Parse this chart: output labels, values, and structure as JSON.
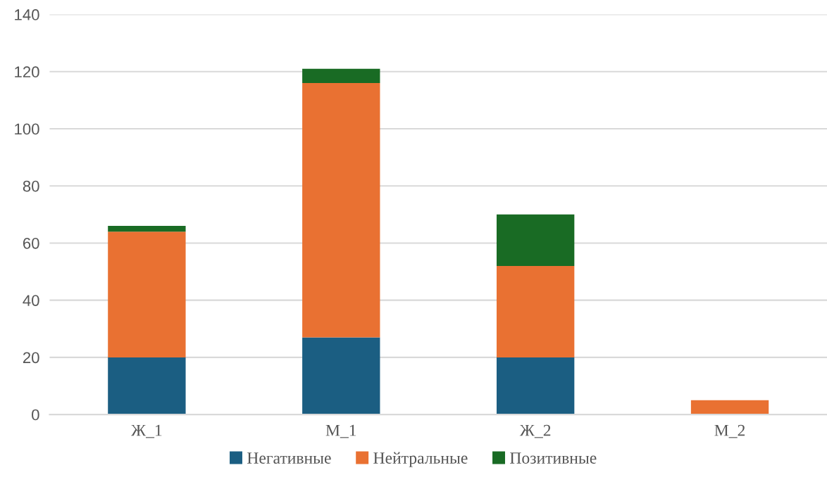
{
  "chart_data": {
    "type": "bar",
    "stacked": true,
    "categories": [
      "Ж_1",
      "М_1",
      "Ж_2",
      "М_2"
    ],
    "series": [
      {
        "name": "Негативные",
        "color": "#1b5e82",
        "values": [
          20,
          27,
          20,
          0
        ]
      },
      {
        "name": "Нейтральные",
        "color": "#e97132",
        "values": [
          44,
          89,
          32,
          5
        ]
      },
      {
        "name": "Позитивные",
        "color": "#196b24",
        "values": [
          2,
          5,
          18,
          0
        ]
      }
    ],
    "ylim": [
      0,
      140
    ],
    "yticks": [
      0,
      20,
      40,
      60,
      80,
      100,
      120,
      140
    ],
    "grid": "y",
    "legend": "bottom"
  }
}
